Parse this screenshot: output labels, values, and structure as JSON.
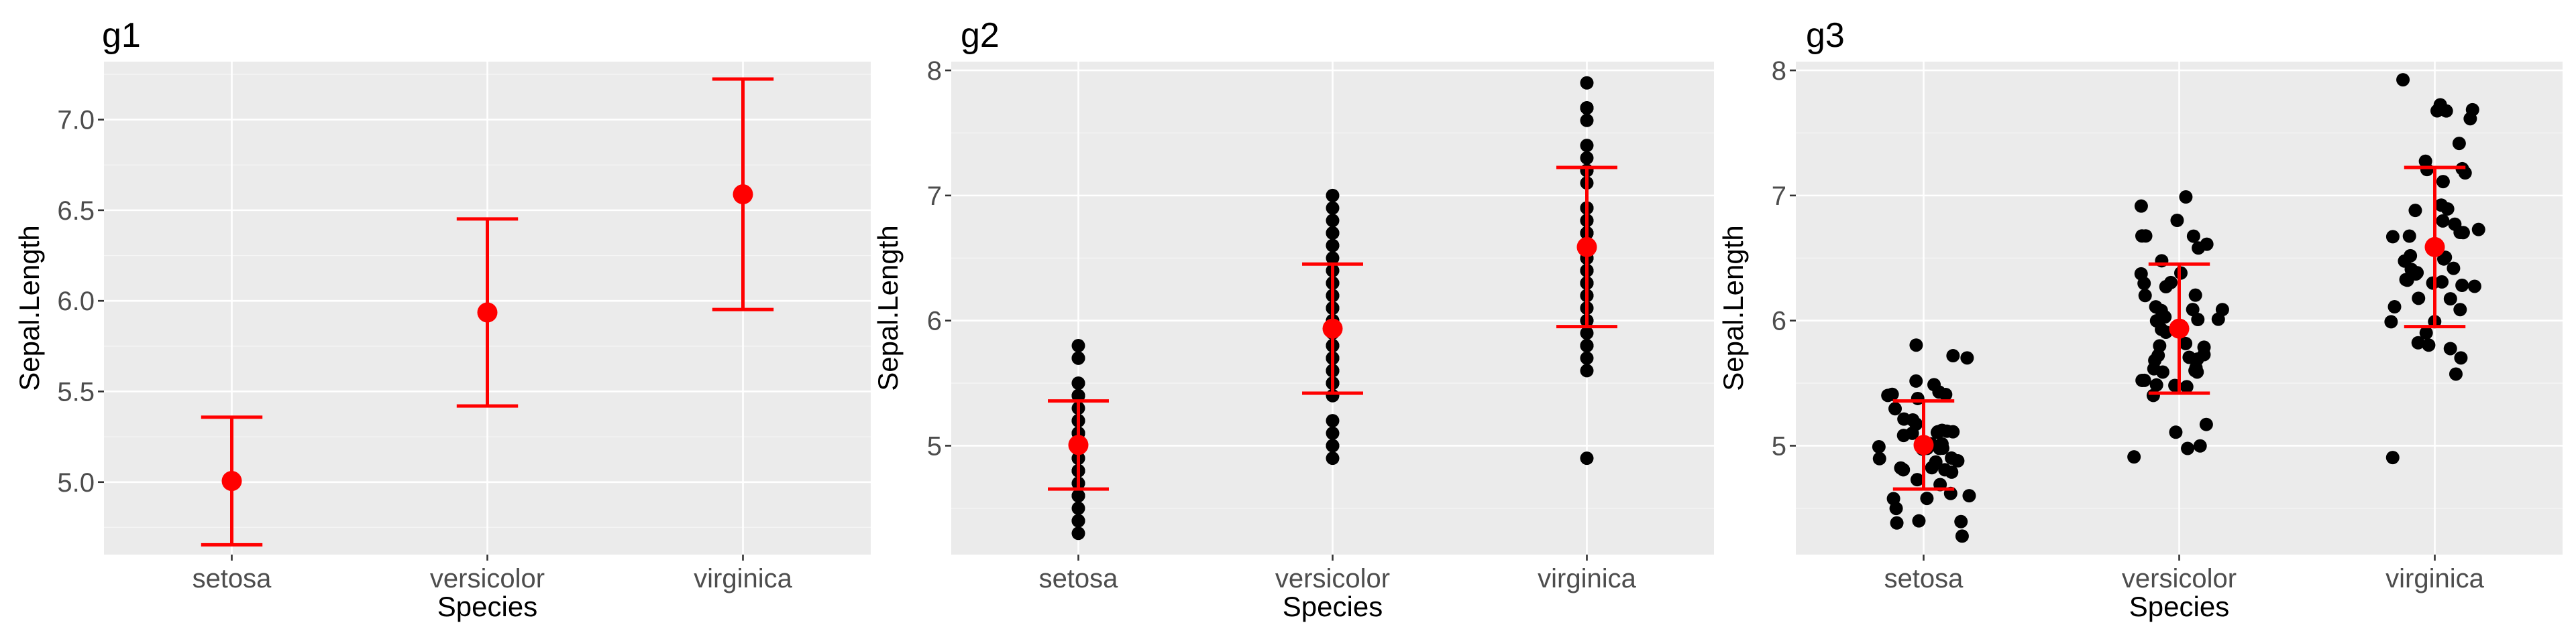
{
  "colors": {
    "summary": "#FF0000",
    "points": "#000000",
    "panel_background": "#EBEBEB",
    "grid": "#FFFFFF"
  },
  "chart_data": [
    {
      "type": "errorbar",
      "title": "g1",
      "xlabel": "Species",
      "ylabel": "Sepal.Length",
      "categories": [
        "setosa",
        "versicolor",
        "virginica"
      ],
      "ylim": [
        4.6,
        7.32
      ],
      "yticks": [
        "5.0",
        "5.5",
        "6.0",
        "6.5",
        "7.0"
      ],
      "summary": {
        "mean": [
          5.006,
          5.936,
          6.588
        ],
        "lower": [
          4.654,
          5.42,
          5.952
        ],
        "upper": [
          5.358,
          6.452,
          7.224
        ]
      },
      "show_points": false,
      "jitter": false
    },
    {
      "type": "scatter",
      "title": "g2",
      "xlabel": "Species",
      "ylabel": "Sepal.Length",
      "categories": [
        "setosa",
        "versicolor",
        "virginica"
      ],
      "ylim": [
        4.13,
        8.07
      ],
      "yticks": [
        "5",
        "6",
        "7",
        "8"
      ],
      "summary": {
        "mean": [
          5.006,
          5.936,
          6.588
        ],
        "lower": [
          4.654,
          5.42,
          5.952
        ],
        "upper": [
          5.358,
          6.452,
          7.224
        ]
      },
      "points": [
        [
          5.1,
          4.9,
          4.7,
          4.6,
          5.0,
          5.4,
          4.6,
          5.0,
          4.4,
          4.9,
          5.4,
          4.8,
          4.8,
          4.3,
          5.8,
          5.7,
          5.4,
          5.1,
          5.7,
          5.1,
          5.4,
          5.1,
          4.6,
          5.1,
          4.8,
          5.0,
          5.0,
          5.2,
          5.2,
          4.7,
          4.8,
          5.4,
          5.2,
          5.5,
          4.9,
          5.0,
          5.5,
          4.9,
          4.4,
          5.1,
          5.0,
          4.5,
          4.4,
          5.0,
          5.1,
          4.8,
          5.1,
          4.6,
          5.3,
          5.0
        ],
        [
          7.0,
          6.4,
          6.9,
          5.5,
          6.5,
          5.7,
          6.3,
          4.9,
          6.6,
          5.2,
          5.0,
          5.9,
          6.0,
          6.1,
          5.6,
          6.7,
          5.6,
          5.8,
          6.2,
          5.6,
          5.9,
          6.1,
          6.3,
          6.1,
          6.4,
          6.6,
          6.8,
          6.7,
          6.0,
          5.7,
          5.5,
          5.5,
          5.8,
          6.0,
          5.4,
          6.0,
          6.7,
          6.3,
          5.6,
          5.5,
          5.5,
          6.1,
          5.8,
          5.0,
          5.6,
          5.7,
          5.7,
          6.2,
          5.1,
          5.7
        ],
        [
          6.3,
          5.8,
          7.1,
          6.3,
          6.5,
          7.6,
          4.9,
          7.3,
          6.7,
          7.2,
          6.5,
          6.4,
          6.8,
          5.7,
          5.8,
          6.4,
          6.5,
          7.7,
          7.7,
          6.0,
          6.9,
          5.6,
          7.7,
          6.3,
          6.7,
          7.2,
          6.2,
          6.1,
          6.4,
          7.2,
          7.4,
          7.9,
          6.4,
          6.3,
          6.1,
          7.7,
          6.3,
          6.4,
          6.0,
          6.9,
          6.7,
          6.9,
          5.8,
          6.8,
          6.7,
          6.7,
          6.3,
          6.5,
          6.2,
          5.9
        ]
      ],
      "show_points": true,
      "jitter": false
    },
    {
      "type": "scatter",
      "title": "g3",
      "xlabel": "Species",
      "ylabel": "Sepal.Length",
      "categories": [
        "setosa",
        "versicolor",
        "virginica"
      ],
      "ylim": [
        4.13,
        8.07
      ],
      "yticks": [
        "5",
        "6",
        "7",
        "8"
      ],
      "summary": {
        "mean": [
          5.006,
          5.936,
          6.588
        ],
        "lower": [
          4.654,
          5.42,
          5.952
        ],
        "upper": [
          5.358,
          6.452,
          7.224
        ]
      },
      "points": [
        [
          5.1,
          4.9,
          4.7,
          4.6,
          5.0,
          5.4,
          4.6,
          5.0,
          4.4,
          4.9,
          5.4,
          4.8,
          4.8,
          4.3,
          5.8,
          5.7,
          5.4,
          5.1,
          5.7,
          5.1,
          5.4,
          5.1,
          4.6,
          5.1,
          4.8,
          5.0,
          5.0,
          5.2,
          5.2,
          4.7,
          4.8,
          5.4,
          5.2,
          5.5,
          4.9,
          5.0,
          5.5,
          4.9,
          4.4,
          5.1,
          5.0,
          4.5,
          4.4,
          5.0,
          5.1,
          4.8,
          5.1,
          4.6,
          5.3,
          5.0
        ],
        [
          7.0,
          6.4,
          6.9,
          5.5,
          6.5,
          5.7,
          6.3,
          4.9,
          6.6,
          5.2,
          5.0,
          5.9,
          6.0,
          6.1,
          5.6,
          6.7,
          5.6,
          5.8,
          6.2,
          5.6,
          5.9,
          6.1,
          6.3,
          6.1,
          6.4,
          6.6,
          6.8,
          6.7,
          6.0,
          5.7,
          5.5,
          5.5,
          5.8,
          6.0,
          5.4,
          6.0,
          6.7,
          6.3,
          5.6,
          5.5,
          5.5,
          6.1,
          5.8,
          5.0,
          5.6,
          5.7,
          5.7,
          6.2,
          5.1,
          5.7
        ],
        [
          6.3,
          5.8,
          7.1,
          6.3,
          6.5,
          7.6,
          4.9,
          7.3,
          6.7,
          7.2,
          6.5,
          6.4,
          6.8,
          5.7,
          5.8,
          6.4,
          6.5,
          7.7,
          7.7,
          6.0,
          6.9,
          5.6,
          7.7,
          6.3,
          6.7,
          7.2,
          6.2,
          6.1,
          6.4,
          7.2,
          7.4,
          7.9,
          6.4,
          6.3,
          6.1,
          7.7,
          6.3,
          6.4,
          6.0,
          6.9,
          6.7,
          6.9,
          5.8,
          6.8,
          6.7,
          6.7,
          6.3,
          6.5,
          6.2,
          5.9
        ]
      ],
      "show_points": true,
      "jitter": true
    }
  ]
}
